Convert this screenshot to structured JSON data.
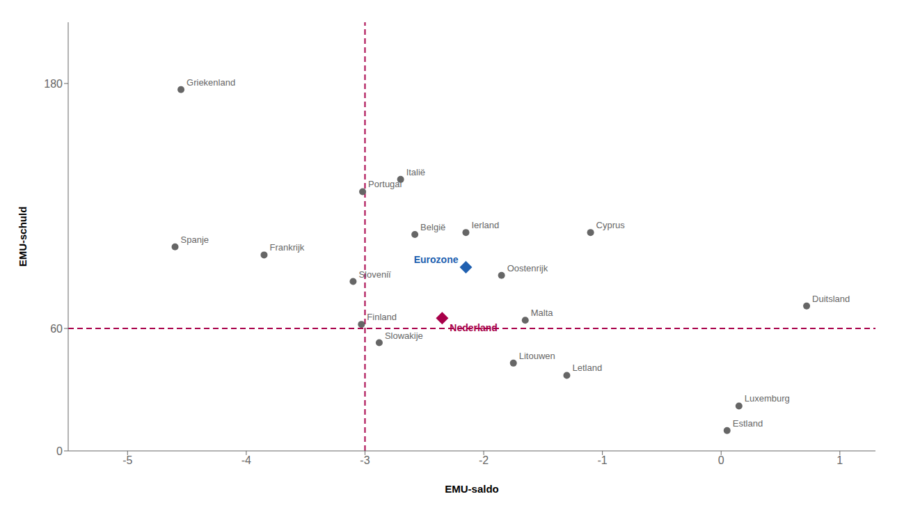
{
  "chart_data": {
    "type": "scatter",
    "xlabel": "EMU-saldo",
    "ylabel": "EMU-schuld",
    "xlim": [
      -5.5,
      1.3
    ],
    "ylim": [
      0,
      210
    ],
    "xticks": [
      -5,
      -4,
      -3,
      -2,
      -1,
      0,
      1
    ],
    "yticks": [
      0,
      60,
      180
    ],
    "grid": false,
    "reference_lines": [
      {
        "x": -3,
        "color": "#a8004a",
        "line_style": "dashed"
      },
      {
        "y": 60,
        "color": "#a8004a",
        "line_style": "dashed"
      }
    ],
    "series": [
      {
        "color": "#666666",
        "marker": "circle",
        "labels": [
          "Griekenland",
          "Spanje",
          "Portugal",
          "Frankrijk",
          "Italië",
          "België",
          "Ierland",
          "Sloveniï",
          "Finland",
          "Slowakije",
          "Oostenrijk",
          "Malta",
          "Cyprus",
          "Duitsland",
          "Letland",
          "Litouwen",
          "Luxemburg",
          "Estland"
        ],
        "x": [
          -4.55,
          -4.6,
          -3.02,
          -3.85,
          -2.7,
          -2.58,
          -2.15,
          -3.1,
          -3.03,
          -2.88,
          -1.85,
          -1.65,
          -1.1,
          0.72,
          -1.3,
          -1.75,
          0.15,
          0.05
        ],
        "y": [
          177,
          100,
          127,
          96,
          133,
          106,
          107,
          83,
          62,
          53,
          86,
          64,
          107,
          71,
          37,
          43,
          22,
          10
        ]
      },
      {
        "color": "#2060b0",
        "marker": "diamond",
        "labels": [
          "Eurozone"
        ],
        "x": [
          -2.15
        ],
        "y": [
          90
        ]
      },
      {
        "color": "#a8004a",
        "marker": "diamond",
        "labels": [
          "Nederland"
        ],
        "x": [
          -2.35
        ],
        "y": [
          65
        ]
      }
    ]
  }
}
